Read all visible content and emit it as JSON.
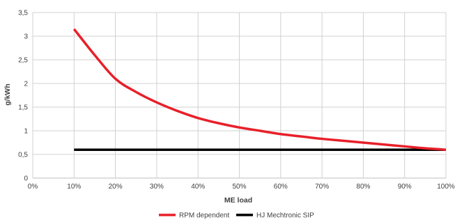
{
  "chart_data": {
    "type": "line",
    "title": "",
    "xlabel": "ME load",
    "ylabel": "g/kWh",
    "xlim": [
      0,
      100
    ],
    "ylim": [
      0,
      3.5
    ],
    "x_ticks": [
      "0%",
      "10%",
      "20%",
      "30%",
      "40%",
      "50%",
      "60%",
      "70%",
      "80%",
      "90%",
      "100%"
    ],
    "y_ticks": [
      "0",
      "0,5",
      "1",
      "1,5",
      "2",
      "2,5",
      "3",
      "3,5"
    ],
    "grid": true,
    "legend_position": "bottom",
    "series": [
      {
        "name": "RPM dependent",
        "color": "#e8202a",
        "x": [
          10,
          15,
          20,
          25,
          30,
          35,
          40,
          45,
          50,
          55,
          60,
          65,
          70,
          75,
          80,
          85,
          90,
          95,
          100
        ],
        "y": [
          3.15,
          2.6,
          2.1,
          1.82,
          1.6,
          1.42,
          1.27,
          1.16,
          1.07,
          1.0,
          0.93,
          0.88,
          0.83,
          0.79,
          0.75,
          0.71,
          0.67,
          0.63,
          0.6
        ]
      },
      {
        "name": "HJ Mechtronic SIP",
        "color": "#000000",
        "x": [
          10,
          100
        ],
        "y": [
          0.6,
          0.6
        ]
      }
    ]
  }
}
